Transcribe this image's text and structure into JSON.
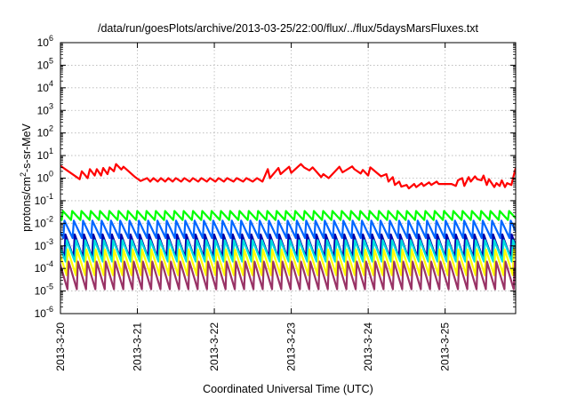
{
  "chart_data": {
    "type": "line",
    "title": "/data/run/goesPlots/archive/2013-03-25/22:00/flux/../flux/5daysMarsFluxes.txt",
    "xlabel": "Coordinated Universal Time (UTC)",
    "ylabel": "protons/cm^2-s-sr-MeV",
    "ylabel_parts": {
      "base": "protons/cm",
      "sup": "2",
      "rest": "-s-sr-MeV"
    },
    "y_scale": "log",
    "ylim": [
      1e-06,
      1000000.0
    ],
    "y_ticks": [
      {
        "value": 1e-06,
        "base": "10",
        "exp": "-6"
      },
      {
        "value": 1e-05,
        "base": "10",
        "exp": "-5"
      },
      {
        "value": 0.0001,
        "base": "10",
        "exp": "-4"
      },
      {
        "value": 0.001,
        "base": "10",
        "exp": "-3"
      },
      {
        "value": 0.01,
        "base": "10",
        "exp": "-2"
      },
      {
        "value": 0.1,
        "base": "10",
        "exp": "-1"
      },
      {
        "value": 1,
        "base": "10",
        "exp": "0"
      },
      {
        "value": 10,
        "base": "10",
        "exp": "1"
      },
      {
        "value": 100,
        "base": "10",
        "exp": "2"
      },
      {
        "value": 1000,
        "base": "10",
        "exp": "3"
      },
      {
        "value": 10000,
        "base": "10",
        "exp": "4"
      },
      {
        "value": 100000,
        "base": "10",
        "exp": "5"
      },
      {
        "value": 1000000,
        "base": "10",
        "exp": "6"
      }
    ],
    "xlim": [
      "2013-03-20 00:00",
      "2013-03-25 22:00"
    ],
    "x_ticks": [
      "2013-3-20",
      "2013-3-21",
      "2013-3-22",
      "2013-3-23",
      "2013-3-24",
      "2013-3-25"
    ],
    "x_tick_dates": [
      "2013-03-20",
      "2013-03-21",
      "2013-03-22",
      "2013-03-23",
      "2013-03-24",
      "2013-03-25"
    ],
    "grid": true,
    "legend": "none",
    "series": [
      {
        "color": "#ff0000",
        "x": [
          "2013-03-20 00:00",
          "2013-03-20 06:00",
          "2013-03-20 06:40",
          "2013-03-20 08:30",
          "2013-03-20 09:10",
          "2013-03-20 10:40",
          "2013-03-20 11:20",
          "2013-03-20 12:40",
          "2013-03-20 13:20",
          "2013-03-20 14:40",
          "2013-03-20 15:20",
          "2013-03-20 16:40",
          "2013-03-20 17:20",
          "2013-03-20 19:00",
          "2013-03-20 19:40",
          "2013-03-20 23:20",
          "2013-03-21 01:00",
          "2013-03-21 03:00",
          "2013-03-21 04:00",
          "2013-03-21 05:00",
          "2013-03-21 06:20",
          "2013-03-21 07:20",
          "2013-03-21 08:40",
          "2013-03-21 09:40",
          "2013-03-21 11:00",
          "2013-03-21 12:00",
          "2013-03-21 13:40",
          "2013-03-21 14:40",
          "2013-03-21 16:20",
          "2013-03-21 17:20",
          "2013-03-21 19:00",
          "2013-03-21 20:00",
          "2013-03-21 21:40",
          "2013-03-21 22:40",
          "2013-03-22 00:20",
          "2013-03-22 01:20",
          "2013-03-22 03:00",
          "2013-03-22 04:00",
          "2013-03-22 06:00",
          "2013-03-22 07:00",
          "2013-03-22 09:00",
          "2013-03-22 10:00",
          "2013-03-22 12:00",
          "2013-03-22 13:20",
          "2013-03-22 15:00",
          "2013-03-22 16:40",
          "2013-03-22 17:20",
          "2013-03-22 20:00",
          "2013-03-22 20:40",
          "2013-03-22 23:20",
          "2013-03-23 00:00",
          "2013-03-23 03:00",
          "2013-03-23 04:00",
          "2013-03-23 05:40",
          "2013-03-23 06:40",
          "2013-03-23 09:20",
          "2013-03-23 10:00",
          "2013-03-23 11:40",
          "2013-03-23 15:00",
          "2013-03-23 16:00",
          "2013-03-23 19:00",
          "2013-03-23 19:40",
          "2013-03-23 21:40",
          "2013-03-23 22:20",
          "2013-03-24 00:00",
          "2013-03-24 00:40",
          "2013-03-24 04:00",
          "2013-03-24 05:40",
          "2013-03-24 06:20",
          "2013-03-24 07:40",
          "2013-03-24 08:20",
          "2013-03-24 09:40",
          "2013-03-24 10:20",
          "2013-03-24 12:00",
          "2013-03-24 12:40",
          "2013-03-24 14:20",
          "2013-03-24 15:00",
          "2013-03-24 16:40",
          "2013-03-24 17:20",
          "2013-03-24 19:00",
          "2013-03-24 19:40",
          "2013-03-24 21:20",
          "2013-03-24 22:00",
          "2013-03-25 02:00",
          "2013-03-25 03:20",
          "2013-03-25 04:00",
          "2013-03-25 05:20",
          "2013-03-25 06:00",
          "2013-03-25 07:20",
          "2013-03-25 08:00",
          "2013-03-25 09:20",
          "2013-03-25 10:00",
          "2013-03-25 11:20",
          "2013-03-25 12:00",
          "2013-03-25 13:00",
          "2013-03-25 13:40",
          "2013-03-25 15:20",
          "2013-03-25 16:00",
          "2013-03-25 17:00",
          "2013-03-25 17:40",
          "2013-03-25 18:40",
          "2013-03-25 19:20",
          "2013-03-25 20:40",
          "2013-03-25 21:20",
          "2013-03-25 22:00"
        ],
        "y": [
          3.5,
          0.9,
          2.0,
          1.0,
          2.5,
          1.3,
          2.5,
          1.3,
          2.8,
          1.5,
          3.0,
          2.0,
          4.2,
          2.4,
          3.2,
          1.1,
          0.75,
          1.0,
          0.7,
          1.0,
          0.7,
          1.0,
          0.7,
          1.0,
          0.7,
          1.0,
          0.7,
          1.0,
          0.7,
          1.0,
          0.7,
          1.0,
          0.7,
          1.0,
          0.7,
          1.0,
          0.7,
          1.0,
          0.7,
          1.0,
          0.7,
          1.0,
          0.7,
          1.0,
          0.7,
          2.5,
          1.0,
          2.8,
          1.5,
          3.2,
          1.7,
          4.2,
          3.0,
          2.2,
          3.0,
          1.1,
          1.5,
          1.0,
          3.2,
          1.8,
          3.3,
          2.5,
          1.6,
          2.3,
          1.3,
          3.0,
          1.2,
          1.5,
          0.7,
          1.1,
          0.5,
          0.7,
          0.42,
          0.5,
          0.35,
          0.55,
          0.4,
          0.6,
          0.45,
          0.65,
          0.5,
          0.7,
          0.55,
          0.55,
          0.45,
          0.8,
          1.0,
          0.45,
          1.1,
          0.7,
          1.2,
          0.9,
          0.8,
          1.3,
          0.5,
          0.9,
          0.4,
          0.6,
          0.45,
          0.8,
          0.4,
          0.6,
          0.5,
          1.2,
          2.8
        ]
      },
      {
        "color": "#00ff00",
        "sawtooth": {
          "period_hours": 2.9,
          "peak": 0.035,
          "trough": 0.014,
          "phase_hours": 0.4
        }
      },
      {
        "color": "#0066ff",
        "sawtooth": {
          "period_hours": 2.9,
          "peak": 0.013,
          "trough": 0.0022,
          "phase_hours": 0.9
        }
      },
      {
        "color": "#0000aa",
        "sawtooth": {
          "period_hours": 2.9,
          "peak": 0.0032,
          "trough": 0.0003,
          "phase_hours": 1.2
        }
      },
      {
        "color": "#00dddd",
        "sawtooth": {
          "period_hours": 2.9,
          "peak": 0.0018,
          "trough": 0.0002,
          "phase_hours": 1.6
        }
      },
      {
        "color": "#ffff00",
        "sawtooth": {
          "period_hours": 2.9,
          "peak": 0.0007,
          "trough": 5e-05,
          "phase_hours": 1.9
        }
      },
      {
        "color": "#993366",
        "sawtooth": {
          "period_hours": 2.9,
          "peak": 0.0002,
          "trough": 1.2e-05,
          "phase_hours": 2.2
        }
      }
    ]
  }
}
